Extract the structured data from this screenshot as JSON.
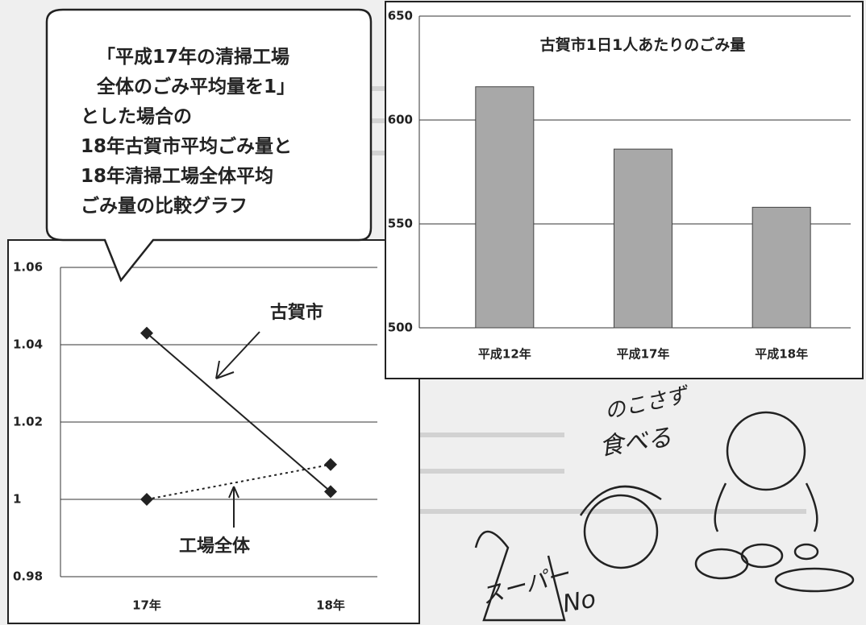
{
  "callout": {
    "lines": [
      "「平成17年の清掃工場",
      "全体のごみ平均量を1」",
      "とした場合の",
      "18年古賀市平均ごみ量と",
      "18年清掃工場全体平均",
      "ごみ量の比較グラフ"
    ]
  },
  "chart_data": [
    {
      "type": "line",
      "categories": [
        "17年",
        "18年"
      ],
      "series": [
        {
          "name": "古賀市",
          "color": "#222222",
          "dash": "none",
          "values": [
            1.043,
            1.002
          ]
        },
        {
          "name": "工場全体",
          "color": "#222222",
          "dash": "3,4",
          "values": [
            1.0,
            1.009
          ]
        }
      ],
      "ylim": [
        0.98,
        1.06
      ],
      "yticks": [
        0.98,
        1,
        1.02,
        1.04,
        1.06
      ],
      "grid": true
    },
    {
      "type": "bar",
      "title": "古賀市1日1人あたりのごみ量",
      "categories": [
        "平成12年",
        "平成17年",
        "平成18年"
      ],
      "values": [
        616,
        586,
        558
      ],
      "color": "#a8a8a8",
      "ylim": [
        500,
        650
      ],
      "yticks": [
        500,
        550,
        600,
        650
      ],
      "grid": true
    }
  ],
  "illustration": {
    "texts": [
      "のこさず",
      "食べる",
      "スーパー",
      "No"
    ]
  }
}
